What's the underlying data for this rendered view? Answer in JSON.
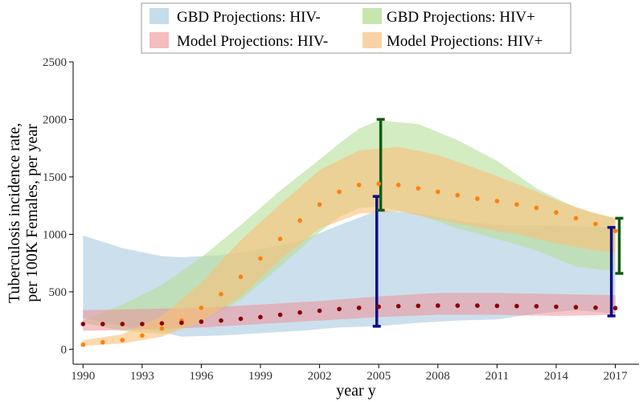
{
  "chart_data": {
    "type": "area",
    "xlabel": "year y",
    "ylabel_lines": [
      "Tuberculosis incidence rate,",
      "per 100K Females, per year"
    ],
    "xlim": [
      1989.5,
      2018.2
    ],
    "ylim": [
      -130,
      2500
    ],
    "xticks": [
      1990,
      1993,
      1996,
      1999,
      2002,
      2005,
      2008,
      2011,
      2014,
      2017
    ],
    "yticks": [
      0,
      500,
      1000,
      1500,
      2000,
      2500
    ],
    "legend_position": "top-center",
    "bands": [
      {
        "name": "GBD Projections: HIV-",
        "color": "#c6dcea",
        "opacity": 0.9,
        "x": [
          1990,
          1992,
          1994,
          1995,
          1997,
          1999,
          2001,
          2003,
          2005,
          2007,
          2009,
          2011,
          2013,
          2015,
          2017
        ],
        "lower": [
          270,
          200,
          150,
          110,
          120,
          140,
          160,
          190,
          200,
          230,
          250,
          260,
          310,
          340,
          310
        ],
        "upper": [
          990,
          880,
          810,
          800,
          820,
          870,
          940,
          1080,
          1210,
          1180,
          1120,
          1080,
          1080,
          1070,
          1060
        ]
      },
      {
        "name": "GBD Projections: HIV+",
        "color": "#b6e09a",
        "opacity": 0.6,
        "x": [
          1990,
          1992,
          1994,
          1996,
          1998,
          2000,
          2002,
          2003,
          2004,
          2005,
          2007,
          2009,
          2011,
          2013,
          2015,
          2017
        ],
        "lower": [
          230,
          160,
          130,
          240,
          430,
          720,
          1020,
          1150,
          1230,
          1240,
          1170,
          1050,
          960,
          860,
          720,
          680
        ],
        "upper": [
          250,
          390,
          560,
          800,
          1080,
          1380,
          1650,
          1790,
          1920,
          1990,
          1960,
          1820,
          1640,
          1400,
          1230,
          1140
        ]
      },
      {
        "name": "Model Projections: HIV-",
        "color": "#f08a8f",
        "opacity": 0.5,
        "x": [
          1990,
          1993,
          1996,
          1999,
          2002,
          2005,
          2008,
          2011,
          2014,
          2017
        ],
        "lower": [
          160,
          170,
          190,
          220,
          250,
          280,
          300,
          300,
          290,
          300
        ],
        "upper": [
          340,
          350,
          360,
          390,
          420,
          460,
          490,
          490,
          480,
          470
        ]
      },
      {
        "name": "Model Projections: HIV+",
        "color": "#fbbf78",
        "opacity": 0.6,
        "x": [
          1990,
          1992,
          1994,
          1996,
          1998,
          2000,
          2002,
          2004,
          2006,
          2008,
          2010,
          2012,
          2014,
          2016,
          2017
        ],
        "lower": [
          30,
          50,
          110,
          240,
          460,
          780,
          1050,
          1180,
          1200,
          1130,
          1060,
          1000,
          920,
          860,
          840
        ],
        "upper": [
          80,
          130,
          290,
          580,
          950,
          1260,
          1560,
          1730,
          1760,
          1690,
          1570,
          1440,
          1300,
          1180,
          1140
        ]
      }
    ],
    "points": [
      {
        "name": "HIV+ model points",
        "color": "#ff7f0e",
        "x": [
          1990,
          1991,
          1992,
          1993,
          1994,
          1995,
          1996,
          1997,
          1998,
          1999,
          2000,
          2001,
          2002,
          2003,
          2004,
          2005,
          2006,
          2007,
          2008,
          2009,
          2010,
          2011,
          2012,
          2013,
          2014,
          2015,
          2016,
          2017
        ],
        "y": [
          40,
          60,
          80,
          120,
          180,
          250,
          360,
          480,
          630,
          790,
          960,
          1120,
          1260,
          1370,
          1430,
          1440,
          1430,
          1400,
          1370,
          1340,
          1310,
          1290,
          1260,
          1230,
          1190,
          1140,
          1090,
          1030
        ]
      },
      {
        "name": "HIV- model points",
        "color": "#8b0000",
        "x": [
          1990,
          1991,
          1992,
          1993,
          1994,
          1995,
          1996,
          1997,
          1998,
          1999,
          2000,
          2001,
          2002,
          2003,
          2004,
          2005,
          2006,
          2007,
          2008,
          2009,
          2010,
          2011,
          2012,
          2013,
          2014,
          2015,
          2016,
          2017
        ],
        "y": [
          220,
          220,
          220,
          220,
          225,
          230,
          240,
          250,
          265,
          280,
          300,
          320,
          335,
          350,
          360,
          370,
          375,
          378,
          380,
          380,
          380,
          378,
          376,
          374,
          370,
          366,
          362,
          358
        ]
      }
    ],
    "error_bars": [
      {
        "name": "HIV- 2005",
        "color": "#0c0c87",
        "x": 2004.9,
        "lower": 200,
        "upper": 1330
      },
      {
        "name": "HIV+ 2005",
        "color": "#0f5c0f",
        "x": 2005.1,
        "lower": 1210,
        "upper": 2000
      },
      {
        "name": "HIV- 2017",
        "color": "#0c0c87",
        "x": 2016.8,
        "lower": 290,
        "upper": 1060
      },
      {
        "name": "HIV+ 2017",
        "color": "#0f5c0f",
        "x": 2017.2,
        "lower": 660,
        "upper": 1140
      }
    ],
    "legend": [
      {
        "label": "GBD Projections: HIV-",
        "color": "#c6dcea"
      },
      {
        "label": "GBD Projections: HIV+",
        "color": "#c7e6ad"
      },
      {
        "label": "Model Projections: HIV-",
        "color": "#f6bcbf"
      },
      {
        "label": "Model Projections: HIV+",
        "color": "#fbd2a6"
      }
    ]
  }
}
